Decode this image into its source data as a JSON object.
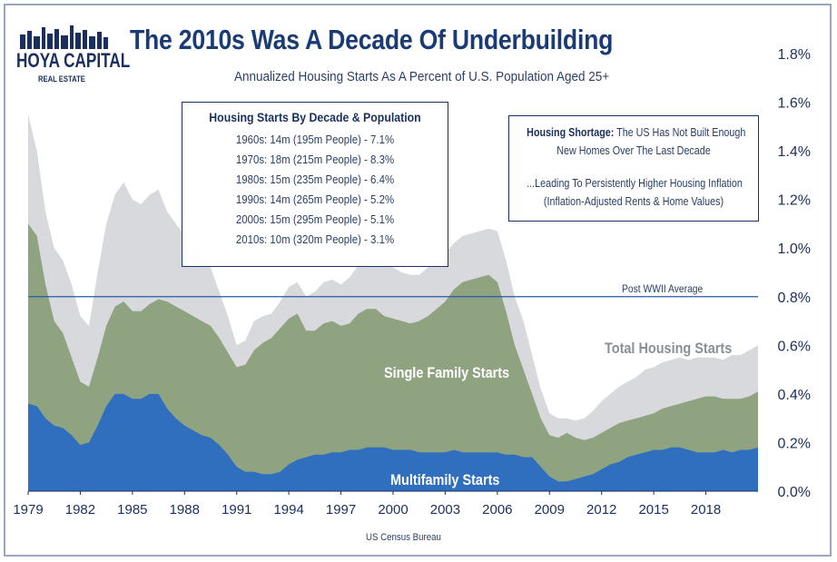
{
  "title": "The 2010s Was A Decade Of Underbuilding",
  "subtitle": "Annualized Housing Starts As A Percent of U.S. Population Aged 25+",
  "logo": {
    "name": "HOYA CAPITAL",
    "sub": "REAL ESTATE"
  },
  "decade_box": {
    "title": "Housing Starts By Decade & Population",
    "rows": [
      "1960s: 14m (195m People) - 7.1%",
      "1970s: 18m (215m People) - 8.3%",
      "1980s: 15m (235m People) - 6.4%",
      "1990s: 14m (265m People) - 5.2%",
      "2000s: 15m (295m People) - 5.1%",
      "2010s: 10m (320m People) - 3.1%"
    ]
  },
  "shortage_box": {
    "bold": "Housing Shortage:",
    "line1_rest": " The US Has Not Built Enough",
    "line2": "New Homes Over The Last Decade",
    "line3": "...Leading To Persistently Higher Housing Inflation",
    "line4": "(Inflation-Adjusted Rents & Home Values)"
  },
  "source": "US Census Bureau",
  "colors": {
    "total": "#d7d9dc",
    "single": "#8fa381",
    "multi": "#2f6fbe",
    "avg_line": "#2a5aa8",
    "text": "#1a2f5e"
  },
  "chart_data": {
    "type": "area",
    "title": "The 2010s Was A Decade Of Underbuilding",
    "subtitle": "Annualized Housing Starts As A Percent of U.S. Population Aged 25+",
    "x_ticks": [
      "1979",
      "1982",
      "1985",
      "1988",
      "1991",
      "1994",
      "1997",
      "2000",
      "2003",
      "2006",
      "2009",
      "2012",
      "2015",
      "2018"
    ],
    "y_ticks": [
      "0.0%",
      "0.2%",
      "0.4%",
      "0.6%",
      "0.8%",
      "1.0%",
      "1.2%",
      "1.4%",
      "1.6%",
      "1.8%"
    ],
    "xlim": [
      1979,
      2021
    ],
    "ylim": [
      0,
      1.8
    ],
    "reference_line": {
      "label": "Post WWII Average",
      "value": 0.8
    },
    "series": [
      {
        "name": "Total Housing Starts",
        "points": [
          [
            1979,
            1.55
          ],
          [
            1979.5,
            1.4
          ],
          [
            1980,
            1.15
          ],
          [
            1980.5,
            1.0
          ],
          [
            1981,
            0.95
          ],
          [
            1981.5,
            0.85
          ],
          [
            1982,
            0.72
          ],
          [
            1982.5,
            0.68
          ],
          [
            1983,
            0.9
          ],
          [
            1983.5,
            1.1
          ],
          [
            1984,
            1.22
          ],
          [
            1984.5,
            1.27
          ],
          [
            1985,
            1.2
          ],
          [
            1985.5,
            1.18
          ],
          [
            1986,
            1.22
          ],
          [
            1986.5,
            1.24
          ],
          [
            1987,
            1.15
          ],
          [
            1987.5,
            1.1
          ],
          [
            1988,
            1.05
          ],
          [
            1988.5,
            1.0
          ],
          [
            1989,
            0.95
          ],
          [
            1989.5,
            0.92
          ],
          [
            1990,
            0.82
          ],
          [
            1990.5,
            0.72
          ],
          [
            1991,
            0.6
          ],
          [
            1991.5,
            0.62
          ],
          [
            1992,
            0.7
          ],
          [
            1992.5,
            0.72
          ],
          [
            1993,
            0.73
          ],
          [
            1993.5,
            0.78
          ],
          [
            1994,
            0.84
          ],
          [
            1994.5,
            0.86
          ],
          [
            1995,
            0.8
          ],
          [
            1995.5,
            0.82
          ],
          [
            1996,
            0.86
          ],
          [
            1996.5,
            0.87
          ],
          [
            1997,
            0.85
          ],
          [
            1997.5,
            0.88
          ],
          [
            1998,
            0.93
          ],
          [
            1998.5,
            0.95
          ],
          [
            1999,
            0.96
          ],
          [
            1999.5,
            0.94
          ],
          [
            2000,
            0.92
          ],
          [
            2000.5,
            0.9
          ],
          [
            2001,
            0.89
          ],
          [
            2001.5,
            0.89
          ],
          [
            2002,
            0.92
          ],
          [
            2002.5,
            0.95
          ],
          [
            2003,
            0.98
          ],
          [
            2003.5,
            1.02
          ],
          [
            2004,
            1.05
          ],
          [
            2004.5,
            1.06
          ],
          [
            2005,
            1.07
          ],
          [
            2005.5,
            1.08
          ],
          [
            2006,
            1.07
          ],
          [
            2006.5,
            0.95
          ],
          [
            2007,
            0.8
          ],
          [
            2007.5,
            0.7
          ],
          [
            2008,
            0.56
          ],
          [
            2008.5,
            0.42
          ],
          [
            2009,
            0.32
          ],
          [
            2009.5,
            0.3
          ],
          [
            2010,
            0.3
          ],
          [
            2010.5,
            0.29
          ],
          [
            2011,
            0.3
          ],
          [
            2011.5,
            0.33
          ],
          [
            2012,
            0.37
          ],
          [
            2012.5,
            0.4
          ],
          [
            2013,
            0.43
          ],
          [
            2013.5,
            0.45
          ],
          [
            2014,
            0.47
          ],
          [
            2014.5,
            0.5
          ],
          [
            2015,
            0.51
          ],
          [
            2015.5,
            0.53
          ],
          [
            2016,
            0.54
          ],
          [
            2016.5,
            0.55
          ],
          [
            2017,
            0.54
          ],
          [
            2017.5,
            0.55
          ],
          [
            2018,
            0.55
          ],
          [
            2018.5,
            0.55
          ],
          [
            2019,
            0.54
          ],
          [
            2019.5,
            0.56
          ],
          [
            2020,
            0.56
          ],
          [
            2020.5,
            0.58
          ],
          [
            2021,
            0.6
          ]
        ]
      },
      {
        "name": "Single Family Starts",
        "points": [
          [
            1979,
            1.1
          ],
          [
            1979.5,
            1.05
          ],
          [
            1980,
            0.85
          ],
          [
            1980.5,
            0.7
          ],
          [
            1981,
            0.65
          ],
          [
            1981.5,
            0.55
          ],
          [
            1982,
            0.45
          ],
          [
            1982.5,
            0.43
          ],
          [
            1983,
            0.55
          ],
          [
            1983.5,
            0.68
          ],
          [
            1984,
            0.76
          ],
          [
            1984.5,
            0.78
          ],
          [
            1985,
            0.74
          ],
          [
            1985.5,
            0.74
          ],
          [
            1986,
            0.77
          ],
          [
            1986.5,
            0.79
          ],
          [
            1987,
            0.78
          ],
          [
            1987.5,
            0.76
          ],
          [
            1988,
            0.74
          ],
          [
            1988.5,
            0.72
          ],
          [
            1989,
            0.7
          ],
          [
            1989.5,
            0.68
          ],
          [
            1990,
            0.63
          ],
          [
            1990.5,
            0.57
          ],
          [
            1991,
            0.51
          ],
          [
            1991.5,
            0.52
          ],
          [
            1992,
            0.58
          ],
          [
            1992.5,
            0.61
          ],
          [
            1993,
            0.63
          ],
          [
            1993.5,
            0.67
          ],
          [
            1994,
            0.71
          ],
          [
            1994.5,
            0.73
          ],
          [
            1995,
            0.66
          ],
          [
            1995.5,
            0.66
          ],
          [
            1996,
            0.69
          ],
          [
            1996.5,
            0.7
          ],
          [
            1997,
            0.68
          ],
          [
            1997.5,
            0.69
          ],
          [
            1998,
            0.73
          ],
          [
            1998.5,
            0.75
          ],
          [
            1999,
            0.75
          ],
          [
            1999.5,
            0.72
          ],
          [
            2000,
            0.71
          ],
          [
            2000.5,
            0.7
          ],
          [
            2001,
            0.69
          ],
          [
            2001.5,
            0.7
          ],
          [
            2002,
            0.72
          ],
          [
            2002.5,
            0.75
          ],
          [
            2003,
            0.78
          ],
          [
            2003.5,
            0.83
          ],
          [
            2004,
            0.86
          ],
          [
            2004.5,
            0.87
          ],
          [
            2005,
            0.88
          ],
          [
            2005.5,
            0.89
          ],
          [
            2006,
            0.86
          ],
          [
            2006.5,
            0.74
          ],
          [
            2007,
            0.6
          ],
          [
            2007.5,
            0.5
          ],
          [
            2008,
            0.4
          ],
          [
            2008.5,
            0.3
          ],
          [
            2009,
            0.23
          ],
          [
            2009.5,
            0.22
          ],
          [
            2010,
            0.24
          ],
          [
            2010.5,
            0.22
          ],
          [
            2011,
            0.21
          ],
          [
            2011.5,
            0.22
          ],
          [
            2012,
            0.24
          ],
          [
            2012.5,
            0.26
          ],
          [
            2013,
            0.28
          ],
          [
            2013.5,
            0.29
          ],
          [
            2014,
            0.3
          ],
          [
            2014.5,
            0.31
          ],
          [
            2015,
            0.32
          ],
          [
            2015.5,
            0.34
          ],
          [
            2016,
            0.35
          ],
          [
            2016.5,
            0.36
          ],
          [
            2017,
            0.37
          ],
          [
            2017.5,
            0.38
          ],
          [
            2018,
            0.39
          ],
          [
            2018.5,
            0.39
          ],
          [
            2019,
            0.38
          ],
          [
            2019.5,
            0.38
          ],
          [
            2020,
            0.38
          ],
          [
            2020.5,
            0.39
          ],
          [
            2021,
            0.41
          ]
        ]
      },
      {
        "name": "Multifamily Starts",
        "points": [
          [
            1979,
            0.36
          ],
          [
            1979.5,
            0.35
          ],
          [
            1980,
            0.3
          ],
          [
            1980.5,
            0.27
          ],
          [
            1981,
            0.26
          ],
          [
            1981.5,
            0.23
          ],
          [
            1982,
            0.19
          ],
          [
            1982.5,
            0.2
          ],
          [
            1983,
            0.27
          ],
          [
            1983.5,
            0.35
          ],
          [
            1984,
            0.4
          ],
          [
            1984.5,
            0.4
          ],
          [
            1985,
            0.38
          ],
          [
            1985.5,
            0.38
          ],
          [
            1986,
            0.4
          ],
          [
            1986.5,
            0.4
          ],
          [
            1987,
            0.34
          ],
          [
            1987.5,
            0.3
          ],
          [
            1988,
            0.27
          ],
          [
            1988.5,
            0.25
          ],
          [
            1989,
            0.23
          ],
          [
            1989.5,
            0.22
          ],
          [
            1990,
            0.19
          ],
          [
            1990.5,
            0.15
          ],
          [
            1991,
            0.1
          ],
          [
            1991.5,
            0.08
          ],
          [
            1992,
            0.08
          ],
          [
            1992.5,
            0.07
          ],
          [
            1993,
            0.07
          ],
          [
            1993.5,
            0.08
          ],
          [
            1994,
            0.11
          ],
          [
            1994.5,
            0.13
          ],
          [
            1995,
            0.14
          ],
          [
            1995.5,
            0.15
          ],
          [
            1996,
            0.15
          ],
          [
            1996.5,
            0.16
          ],
          [
            1997,
            0.16
          ],
          [
            1997.5,
            0.17
          ],
          [
            1998,
            0.17
          ],
          [
            1998.5,
            0.18
          ],
          [
            1999,
            0.18
          ],
          [
            1999.5,
            0.18
          ],
          [
            2000,
            0.17
          ],
          [
            2000.5,
            0.17
          ],
          [
            2001,
            0.17
          ],
          [
            2001.5,
            0.16
          ],
          [
            2002,
            0.16
          ],
          [
            2002.5,
            0.16
          ],
          [
            2003,
            0.16
          ],
          [
            2003.5,
            0.17
          ],
          [
            2004,
            0.16
          ],
          [
            2004.5,
            0.16
          ],
          [
            2005,
            0.16
          ],
          [
            2005.5,
            0.16
          ],
          [
            2006,
            0.16
          ],
          [
            2006.5,
            0.15
          ],
          [
            2007,
            0.15
          ],
          [
            2007.5,
            0.14
          ],
          [
            2008,
            0.14
          ],
          [
            2008.5,
            0.1
          ],
          [
            2009,
            0.06
          ],
          [
            2009.5,
            0.04
          ],
          [
            2010,
            0.04
          ],
          [
            2010.5,
            0.05
          ],
          [
            2011,
            0.06
          ],
          [
            2011.5,
            0.07
          ],
          [
            2012,
            0.09
          ],
          [
            2012.5,
            0.11
          ],
          [
            2013,
            0.12
          ],
          [
            2013.5,
            0.14
          ],
          [
            2014,
            0.15
          ],
          [
            2014.5,
            0.16
          ],
          [
            2015,
            0.17
          ],
          [
            2015.5,
            0.17
          ],
          [
            2016,
            0.18
          ],
          [
            2016.5,
            0.18
          ],
          [
            2017,
            0.17
          ],
          [
            2017.5,
            0.16
          ],
          [
            2018,
            0.16
          ],
          [
            2018.5,
            0.16
          ],
          [
            2019,
            0.17
          ],
          [
            2019.5,
            0.16
          ],
          [
            2020,
            0.17
          ],
          [
            2020.5,
            0.17
          ],
          [
            2021,
            0.18
          ]
        ]
      }
    ],
    "series_labels": {
      "total": "Total Housing Starts",
      "single": "Single Family Starts",
      "multi": "Multifamily Starts"
    },
    "grid": false,
    "legend": "none"
  }
}
